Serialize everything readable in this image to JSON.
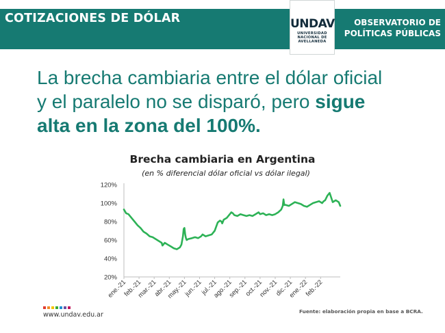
{
  "header": {
    "title": "COTIZACIONES DE DÓLAR",
    "logo_mark": "UNDAV",
    "logo_sub": [
      "UNIVERSIDAD",
      "NACIONAL DE",
      "AVELLANEDA"
    ],
    "observatory_line1": "OBSERVATORIO DE",
    "observatory_line2": "POLÍTICAS PÚBLICAS"
  },
  "headline": {
    "line1": "La brecha cambiaria entre el dólar oficial",
    "line2_regular": "y el paralelo no se disparó, pero ",
    "line2_bold": "sigue",
    "line3_bold": "alta en la zona del 100%."
  },
  "colors": {
    "brand": "#167a72",
    "line": "#2db256",
    "dots": [
      "#e03c31",
      "#f28c28",
      "#f5c400",
      "#3aa935",
      "#1f8fd3",
      "#6b4fa0",
      "#c2185b"
    ]
  },
  "chart_data": {
    "type": "line",
    "title": "Brecha cambiaria en Argentina",
    "subtitle": "(en % diferencial dólar oficial vs dólar ilegal)",
    "xlabel": "",
    "ylabel": "",
    "ylim": [
      20,
      120
    ],
    "yticks": [
      20,
      40,
      60,
      80,
      100,
      120
    ],
    "ytick_labels": [
      "20%",
      "40%",
      "60%",
      "80%",
      "100%",
      "120%"
    ],
    "xlim": [
      0,
      14.3
    ],
    "xticks": [
      "ene.-21",
      "feb.-21",
      "mar.-21",
      "abr.-21",
      "may.-21",
      "jun.-21",
      "jul.-21",
      "ago.-21",
      "sep.-21",
      "oct.-21",
      "nov.-21",
      "dic.-21",
      "ene.-22",
      "feb.-22"
    ],
    "grid": false,
    "series": [
      {
        "name": "Brecha cambiaria",
        "x": [
          0,
          0.15,
          0.3,
          0.5,
          0.7,
          0.9,
          1.1,
          1.3,
          1.5,
          1.7,
          1.9,
          2.1,
          2.3,
          2.5,
          2.55,
          2.7,
          2.9,
          3.1,
          3.3,
          3.5,
          3.7,
          3.8,
          3.9,
          3.95,
          4.0,
          4.05,
          4.1,
          4.15,
          4.25,
          4.5,
          4.7,
          4.9,
          5.1,
          5.2,
          5.4,
          5.6,
          5.8,
          6.0,
          6.2,
          6.35,
          6.45,
          6.5,
          6.6,
          6.8,
          7.0,
          7.1,
          7.2,
          7.3,
          7.5,
          7.7,
          7.9,
          8.1,
          8.3,
          8.5,
          8.7,
          8.9,
          9.0,
          9.2,
          9.4,
          9.6,
          9.8,
          10.0,
          10.2,
          10.4,
          10.5,
          10.55,
          10.6,
          10.7,
          10.9,
          11.1,
          11.3,
          11.5,
          11.7,
          11.9,
          12.1,
          12.3,
          12.5,
          12.7,
          12.9,
          13.0,
          13.1,
          13.2,
          13.3,
          13.45,
          13.6,
          13.8,
          14.0,
          14.2,
          14.3
        ],
        "values": [
          93,
          89,
          88,
          84,
          80,
          76,
          73,
          69,
          67,
          64,
          63,
          61,
          59,
          57,
          54,
          57,
          55,
          53,
          51,
          50,
          52,
          55,
          64,
          72,
          73,
          66,
          62,
          60,
          61,
          62,
          63,
          62,
          64,
          66,
          64,
          65,
          66,
          70,
          79,
          81,
          80,
          78,
          82,
          84,
          88,
          90,
          89,
          87,
          86,
          88,
          87,
          86,
          87,
          86,
          88,
          90,
          88,
          89,
          87,
          88,
          87,
          88,
          90,
          93,
          97,
          104,
          98,
          98,
          97,
          99,
          101,
          100,
          99,
          97,
          96,
          98,
          100,
          101,
          102,
          101,
          100,
          102,
          103,
          108,
          111,
          101,
          103,
          101,
          97
        ]
      }
    ]
  },
  "footer": {
    "website": "www.undav.edu.ar",
    "source": "Fuente: elaboración propia en base a BCRA."
  }
}
